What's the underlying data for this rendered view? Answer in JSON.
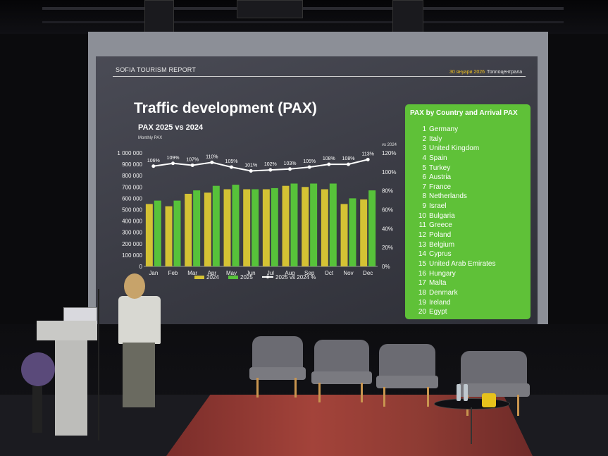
{
  "slide": {
    "header_left": "SOFIA  TOURISM REPORT",
    "header_date": "30 януари 2026",
    "header_right": "Топлоцентрала",
    "title": "Traffic development (PAX)"
  },
  "chart_data": {
    "type": "bar",
    "title": "PAX 2025 vs 2024",
    "ylabel": "Monthly PAX",
    "y2label": "vs 2024",
    "categories": [
      "Jan",
      "Feb",
      "Mar",
      "Apr",
      "May",
      "Jun",
      "Jul",
      "Aug",
      "Sep",
      "Oct",
      "Nov",
      "Dec"
    ],
    "ylim": [
      0,
      1000000
    ],
    "y2lim": [
      0,
      120
    ],
    "yticks": [
      "0",
      "100 000",
      "200 000",
      "300 000",
      "400 000",
      "500 000",
      "600 000",
      "700 000",
      "800 000",
      "900 000",
      "1 000 000"
    ],
    "y2ticks": [
      "0%",
      "20%",
      "40%",
      "60%",
      "80%",
      "100%",
      "120%"
    ],
    "series": [
      {
        "name": "2024",
        "color": "#d4c234",
        "values": [
          550000,
          530000,
          640000,
          650000,
          680000,
          680000,
          680000,
          710000,
          700000,
          680000,
          550000,
          590000
        ]
      },
      {
        "name": "2025",
        "color": "#57c23a",
        "values": [
          580000,
          580000,
          670000,
          710000,
          720000,
          680000,
          690000,
          730000,
          730000,
          730000,
          600000,
          670000
        ]
      }
    ],
    "line_series": {
      "name": "2025 vs 2024 %",
      "color": "#ffffff",
      "values": [
        106,
        109,
        107,
        110,
        105,
        101,
        102,
        103,
        105,
        108,
        108,
        113
      ],
      "labels": [
        "106%",
        "109%",
        "107%",
        "110%",
        "105%",
        "101%",
        "102%",
        "103%",
        "105%",
        "108%",
        "108%",
        "113%"
      ]
    },
    "legend_placement": "bottom",
    "grid": false
  },
  "country_box": {
    "heading": "PAX by Country and Arrival PAX",
    "color": "#5fc138",
    "items": [
      {
        "n": "1",
        "name": "Germany"
      },
      {
        "n": "2",
        "name": "Italy"
      },
      {
        "n": "3",
        "name": "United Kingdom"
      },
      {
        "n": "4",
        "name": "Spain"
      },
      {
        "n": "5",
        "name": "Turkey"
      },
      {
        "n": "6",
        "name": "Austria"
      },
      {
        "n": "7",
        "name": "France"
      },
      {
        "n": "8",
        "name": "Netherlands"
      },
      {
        "n": "9",
        "name": "Israel"
      },
      {
        "n": "10",
        "name": "Bulgaria"
      },
      {
        "n": "11",
        "name": "Greece"
      },
      {
        "n": "12",
        "name": "Poland"
      },
      {
        "n": "13",
        "name": "Belgium"
      },
      {
        "n": "14",
        "name": "Cyprus"
      },
      {
        "n": "15",
        "name": "United Arab Emirates"
      },
      {
        "n": "16",
        "name": "Hungary"
      },
      {
        "n": "17",
        "name": "Malta"
      },
      {
        "n": "18",
        "name": "Denmark"
      },
      {
        "n": "19",
        "name": "Ireland"
      },
      {
        "n": "20",
        "name": "Egypt"
      }
    ]
  }
}
